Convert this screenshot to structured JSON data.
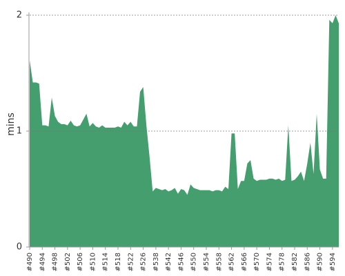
{
  "chart_data": {
    "type": "area",
    "y_label": "mins",
    "color": "#459e6e",
    "grid": true,
    "ylim": [
      0,
      2
    ],
    "yticks": [
      0,
      1,
      2
    ],
    "categories": [
      "#490",
      null,
      null,
      null,
      "#494",
      null,
      null,
      null,
      "#498",
      null,
      null,
      null,
      "#502",
      null,
      null,
      null,
      "#506",
      null,
      null,
      null,
      "#510",
      null,
      null,
      null,
      "#514",
      null,
      null,
      null,
      "#518",
      null,
      null,
      null,
      "#522",
      null,
      null,
      null,
      "#526",
      null,
      null,
      null,
      "#538",
      null,
      null,
      null,
      "#542",
      null,
      null,
      null,
      "#546",
      null,
      null,
      null,
      "#550",
      null,
      null,
      null,
      "#554",
      null,
      null,
      null,
      "#558",
      null,
      null,
      null,
      "#562",
      null,
      null,
      null,
      "#566",
      null,
      null,
      null,
      "#570",
      null,
      null,
      null,
      "#574",
      null,
      null,
      null,
      "#578",
      null,
      null,
      null,
      "#582",
      null,
      null,
      null,
      "#586",
      null,
      null,
      null,
      "#590",
      null,
      null,
      null,
      "#594",
      null,
      null
    ],
    "values": [
      1.61,
      1.42,
      1.42,
      1.41,
      1.05,
      1.05,
      1.04,
      1.29,
      1.13,
      1.08,
      1.06,
      1.06,
      1.05,
      1.09,
      1.05,
      1.04,
      1.05,
      1.1,
      1.15,
      1.04,
      1.07,
      1.04,
      1.03,
      1.05,
      1.03,
      1.03,
      1.03,
      1.03,
      1.04,
      1.03,
      1.08,
      1.05,
      1.08,
      1.04,
      1.04,
      1.34,
      1.38,
      1.05,
      0.78,
      0.48,
      0.51,
      0.5,
      0.49,
      0.5,
      0.48,
      0.49,
      0.51,
      0.46,
      0.5,
      0.49,
      0.45,
      0.54,
      0.51,
      0.5,
      0.49,
      0.49,
      0.49,
      0.49,
      0.48,
      0.49,
      0.49,
      0.48,
      0.52,
      0.5,
      0.98,
      0.98,
      0.5,
      0.57,
      0.57,
      0.72,
      0.75,
      0.59,
      0.57,
      0.58,
      0.58,
      0.58,
      0.59,
      0.59,
      0.58,
      0.59,
      0.57,
      0.58,
      1.05,
      0.57,
      0.58,
      0.61,
      0.65,
      0.57,
      0.72,
      0.9,
      0.63,
      1.15,
      0.67,
      0.59,
      0.59,
      1.96,
      1.93,
      2.0,
      1.93
    ]
  }
}
